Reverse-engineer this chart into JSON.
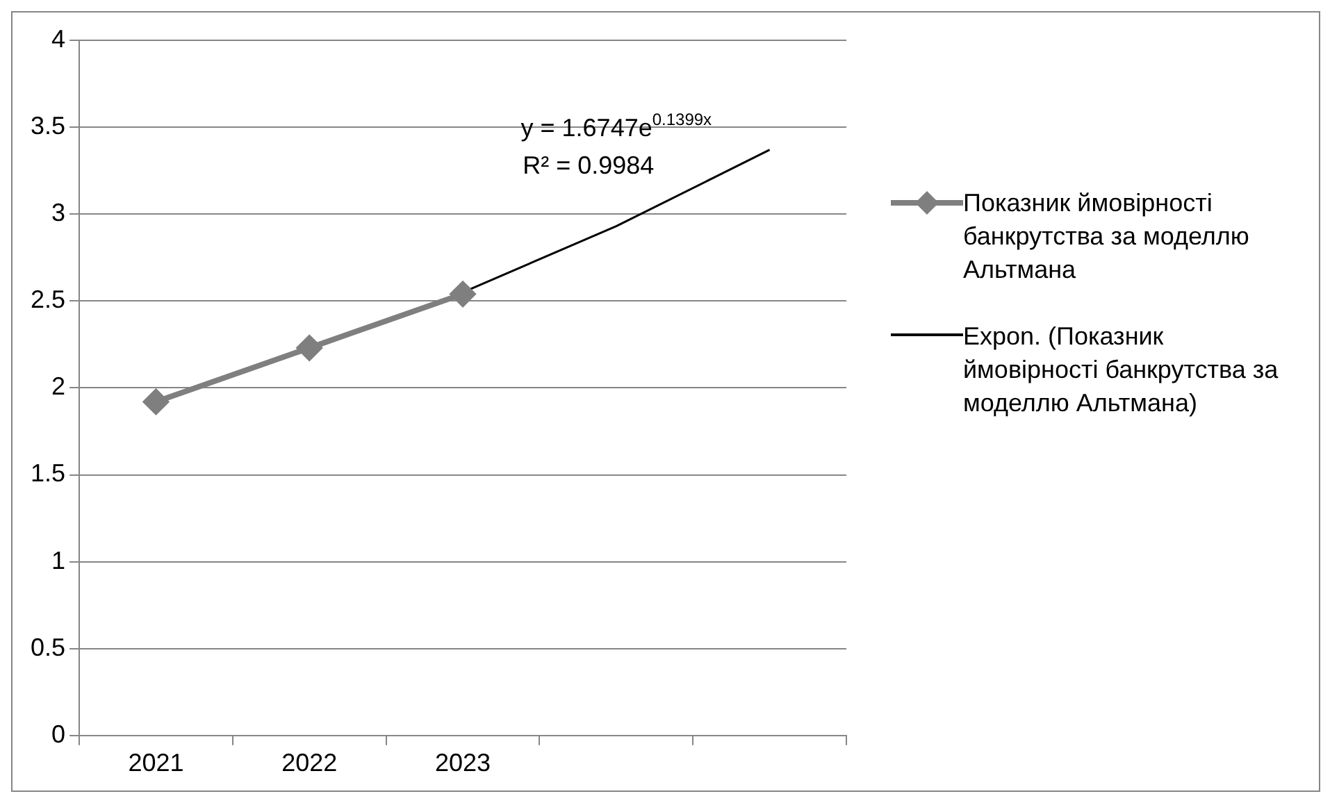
{
  "chart_data": {
    "type": "line",
    "categories": [
      "2021",
      "2022",
      "2023",
      null,
      null
    ],
    "series": [
      {
        "name": "Показник ймовірності банкрутства за моделлю Альтмана",
        "color": "#7f7f7f",
        "values": [
          1.92,
          2.23,
          2.54,
          null,
          null
        ],
        "marker": "diamond"
      },
      {
        "name": "Expon. (Показник ймовірності банкрутства за моделлю Альтмана)",
        "type": "line",
        "color": "#000000",
        "values": [
          1.93,
          2.22,
          2.55,
          2.93,
          3.37
        ],
        "marker": "none"
      }
    ],
    "ylim": [
      0,
      4
    ],
    "yticks": [
      0,
      0.5,
      1,
      1.5,
      2,
      2.5,
      3,
      3.5,
      4
    ],
    "grid": "y",
    "legend": "right",
    "annotations": [
      "y = 1.6747e$^{0.1399x}$",
      "R² = 0.9984"
    ]
  }
}
